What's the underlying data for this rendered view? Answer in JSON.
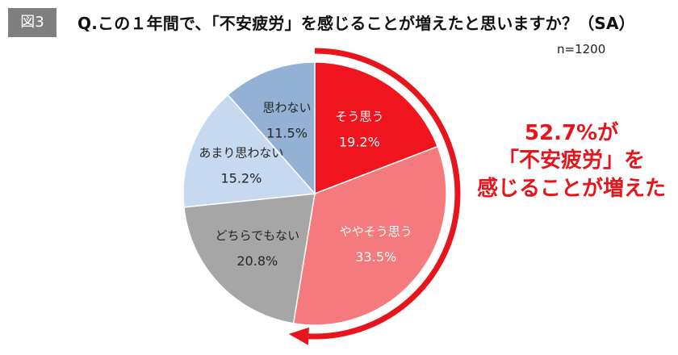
{
  "figure_tag": "図3",
  "title": "Q.この１年間で、「不安疲労」を感じることが増えたと思いますか？（SA）",
  "sample_size": "n=1200",
  "callout": {
    "line1": "52.7%が",
    "line2": "「不安疲労」を",
    "line3": "感じることが増えた",
    "color": "#e8141b"
  },
  "chart_data": {
    "type": "pie",
    "title": "Q.この１年間で、「不安疲労」を感じることが増えたと思いますか？（SA）",
    "start": "12 o'clock",
    "direction": "clockwise",
    "slices": [
      {
        "label": "そう思う",
        "value": 19.2,
        "value_label": "19.2%",
        "color": "#f0141e",
        "text_color": "#ffffff"
      },
      {
        "label": "ややそう思う",
        "value": 33.5,
        "value_label": "33.5%",
        "color": "#f47a7d",
        "text_color": "#ffffff"
      },
      {
        "label": "どちらでもない",
        "value": 20.8,
        "value_label": "20.8%",
        "color": "#a6a6a6",
        "text_color": "#262626"
      },
      {
        "label": "あまり思わない",
        "value": 15.2,
        "value_label": "15.2%",
        "color": "#c7d9f0",
        "text_color": "#262626"
      },
      {
        "label": "思わない",
        "value": 11.5,
        "value_label": "11.5%",
        "color": "#93b1d5",
        "text_color": "#262626"
      }
    ],
    "highlight": {
      "value": 52.7,
      "arrow_color": "#e8141b"
    }
  }
}
